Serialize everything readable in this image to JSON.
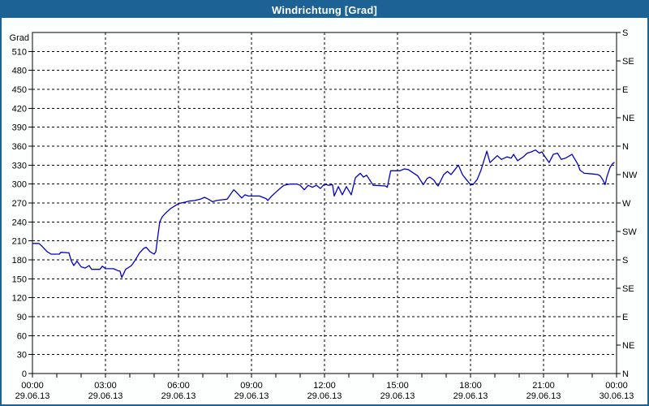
{
  "window": {
    "title": "Windrichtung [Grad]"
  },
  "colors": {
    "titlebar": "#1d6295",
    "window_border": "#1d6295",
    "plot_background": "#ffffff",
    "grid": "#000000",
    "text": "#000000",
    "line": "#0000cc"
  },
  "chart_data": {
    "type": "line",
    "title": "Windrichtung [Grad]",
    "grid": "dashed",
    "legend_position": "none",
    "y_axis": {
      "label": "Grad",
      "min": 0,
      "max": 540,
      "grid_step": 30,
      "ticks": [
        0,
        30,
        60,
        90,
        120,
        150,
        180,
        210,
        240,
        270,
        300,
        330,
        360,
        390,
        420,
        450,
        480,
        510
      ]
    },
    "right_axis": {
      "unit": "compass",
      "ticks": [
        {
          "deg": 0,
          "label": "N"
        },
        {
          "deg": 45,
          "label": "NE"
        },
        {
          "deg": 90,
          "label": "E"
        },
        {
          "deg": 135,
          "label": "SE"
        },
        {
          "deg": 180,
          "label": "S"
        },
        {
          "deg": 225,
          "label": "SW"
        },
        {
          "deg": 270,
          "label": "W"
        },
        {
          "deg": 315,
          "label": "NW"
        },
        {
          "deg": 360,
          "label": "N"
        },
        {
          "deg": 405,
          "label": "NE"
        },
        {
          "deg": 450,
          "label": "E"
        },
        {
          "deg": 495,
          "label": "SE"
        },
        {
          "deg": 540,
          "label": "S"
        }
      ]
    },
    "x_axis": {
      "min": 0,
      "max": 24,
      "minor_tick_step_hours": 1,
      "label_step_hours": 3,
      "ticks": [
        {
          "hour": 0,
          "time": "00:00",
          "date": "29.06.13"
        },
        {
          "hour": 3,
          "time": "03:00",
          "date": "29.06.13"
        },
        {
          "hour": 6,
          "time": "06:00",
          "date": "29.06.13"
        },
        {
          "hour": 9,
          "time": "09:00",
          "date": "29.06.13"
        },
        {
          "hour": 12,
          "time": "12:00",
          "date": "29.06.13"
        },
        {
          "hour": 15,
          "time": "15:00",
          "date": "29.06.13"
        },
        {
          "hour": 18,
          "time": "18:00",
          "date": "29.06.13"
        },
        {
          "hour": 21,
          "time": "21:00",
          "date": "29.06.13"
        },
        {
          "hour": 24,
          "time": "00:00",
          "date": "30.06.13"
        }
      ]
    },
    "series": [
      {
        "name": "Windrichtung",
        "color": "#0000cc",
        "points": [
          [
            0.0,
            206
          ],
          [
            0.27,
            206
          ],
          [
            0.43,
            200
          ],
          [
            0.6,
            193
          ],
          [
            0.77,
            189
          ],
          [
            1.1,
            189
          ],
          [
            1.17,
            192
          ],
          [
            1.5,
            191
          ],
          [
            1.6,
            178
          ],
          [
            1.7,
            171
          ],
          [
            1.83,
            178
          ],
          [
            2.0,
            169
          ],
          [
            2.17,
            167
          ],
          [
            2.33,
            171
          ],
          [
            2.43,
            165
          ],
          [
            2.77,
            165
          ],
          [
            2.87,
            170
          ],
          [
            3.0,
            166
          ],
          [
            3.33,
            166
          ],
          [
            3.5,
            163
          ],
          [
            3.6,
            162
          ],
          [
            3.67,
            152
          ],
          [
            3.83,
            165
          ],
          [
            4.07,
            171
          ],
          [
            4.23,
            180
          ],
          [
            4.4,
            191
          ],
          [
            4.57,
            198
          ],
          [
            4.67,
            200
          ],
          [
            4.83,
            193
          ],
          [
            5.0,
            189
          ],
          [
            5.07,
            193
          ],
          [
            5.23,
            240
          ],
          [
            5.33,
            248
          ],
          [
            5.5,
            255
          ],
          [
            5.67,
            261
          ],
          [
            5.83,
            265
          ],
          [
            6.0,
            269
          ],
          [
            6.23,
            271
          ],
          [
            6.43,
            273
          ],
          [
            6.67,
            274
          ],
          [
            6.9,
            276
          ],
          [
            7.07,
            279
          ],
          [
            7.23,
            276
          ],
          [
            7.4,
            272
          ],
          [
            7.57,
            274
          ],
          [
            7.77,
            275
          ],
          [
            8.0,
            276
          ],
          [
            8.27,
            291
          ],
          [
            8.33,
            289
          ],
          [
            8.6,
            278
          ],
          [
            8.73,
            283
          ],
          [
            8.87,
            281
          ],
          [
            9.33,
            281
          ],
          [
            9.6,
            277
          ],
          [
            9.67,
            274
          ],
          [
            9.83,
            281
          ],
          [
            10.0,
            287
          ],
          [
            10.17,
            293
          ],
          [
            10.33,
            298
          ],
          [
            10.57,
            300
          ],
          [
            10.87,
            300
          ],
          [
            11.0,
            298
          ],
          [
            11.17,
            291
          ],
          [
            11.33,
            298
          ],
          [
            11.5,
            295
          ],
          [
            11.67,
            298
          ],
          [
            11.83,
            293
          ],
          [
            12.0,
            300
          ],
          [
            12.17,
            298
          ],
          [
            12.33,
            299
          ],
          [
            12.4,
            281
          ],
          [
            12.57,
            296
          ],
          [
            12.73,
            283
          ],
          [
            12.9,
            296
          ],
          [
            13.1,
            283
          ],
          [
            13.27,
            310
          ],
          [
            13.47,
            317
          ],
          [
            13.6,
            311
          ],
          [
            13.73,
            314
          ],
          [
            13.9,
            304
          ],
          [
            14.0,
            298
          ],
          [
            14.5,
            297
          ],
          [
            14.58,
            295
          ],
          [
            14.72,
            321
          ],
          [
            15.1,
            321
          ],
          [
            15.28,
            324
          ],
          [
            15.44,
            323
          ],
          [
            15.67,
            317
          ],
          [
            15.83,
            313
          ],
          [
            16.06,
            299
          ],
          [
            16.22,
            309
          ],
          [
            16.33,
            311
          ],
          [
            16.5,
            306
          ],
          [
            16.61,
            299
          ],
          [
            16.67,
            297
          ],
          [
            16.9,
            315
          ],
          [
            17.05,
            320
          ],
          [
            17.2,
            315
          ],
          [
            17.5,
            330
          ],
          [
            17.67,
            315
          ],
          [
            17.83,
            307
          ],
          [
            18.0,
            299
          ],
          [
            18.1,
            299
          ],
          [
            18.27,
            307
          ],
          [
            18.43,
            322
          ],
          [
            18.67,
            352
          ],
          [
            18.8,
            334
          ],
          [
            19.1,
            345
          ],
          [
            19.27,
            339
          ],
          [
            19.5,
            343
          ],
          [
            19.67,
            341
          ],
          [
            19.77,
            347
          ],
          [
            19.93,
            337
          ],
          [
            20.17,
            343
          ],
          [
            20.33,
            349
          ],
          [
            20.5,
            351
          ],
          [
            20.67,
            354
          ],
          [
            20.83,
            349
          ],
          [
            20.93,
            351
          ],
          [
            21.1,
            341
          ],
          [
            21.23,
            334
          ],
          [
            21.4,
            347
          ],
          [
            21.57,
            349
          ],
          [
            21.73,
            339
          ],
          [
            21.9,
            341
          ],
          [
            22.17,
            347
          ],
          [
            22.4,
            332
          ],
          [
            22.5,
            322
          ],
          [
            22.67,
            317
          ],
          [
            23.0,
            316
          ],
          [
            23.23,
            315
          ],
          [
            23.33,
            313
          ],
          [
            23.43,
            307
          ],
          [
            23.53,
            299
          ],
          [
            23.6,
            311
          ],
          [
            23.73,
            326
          ],
          [
            23.83,
            332
          ],
          [
            23.9,
            334
          ]
        ]
      }
    ]
  }
}
